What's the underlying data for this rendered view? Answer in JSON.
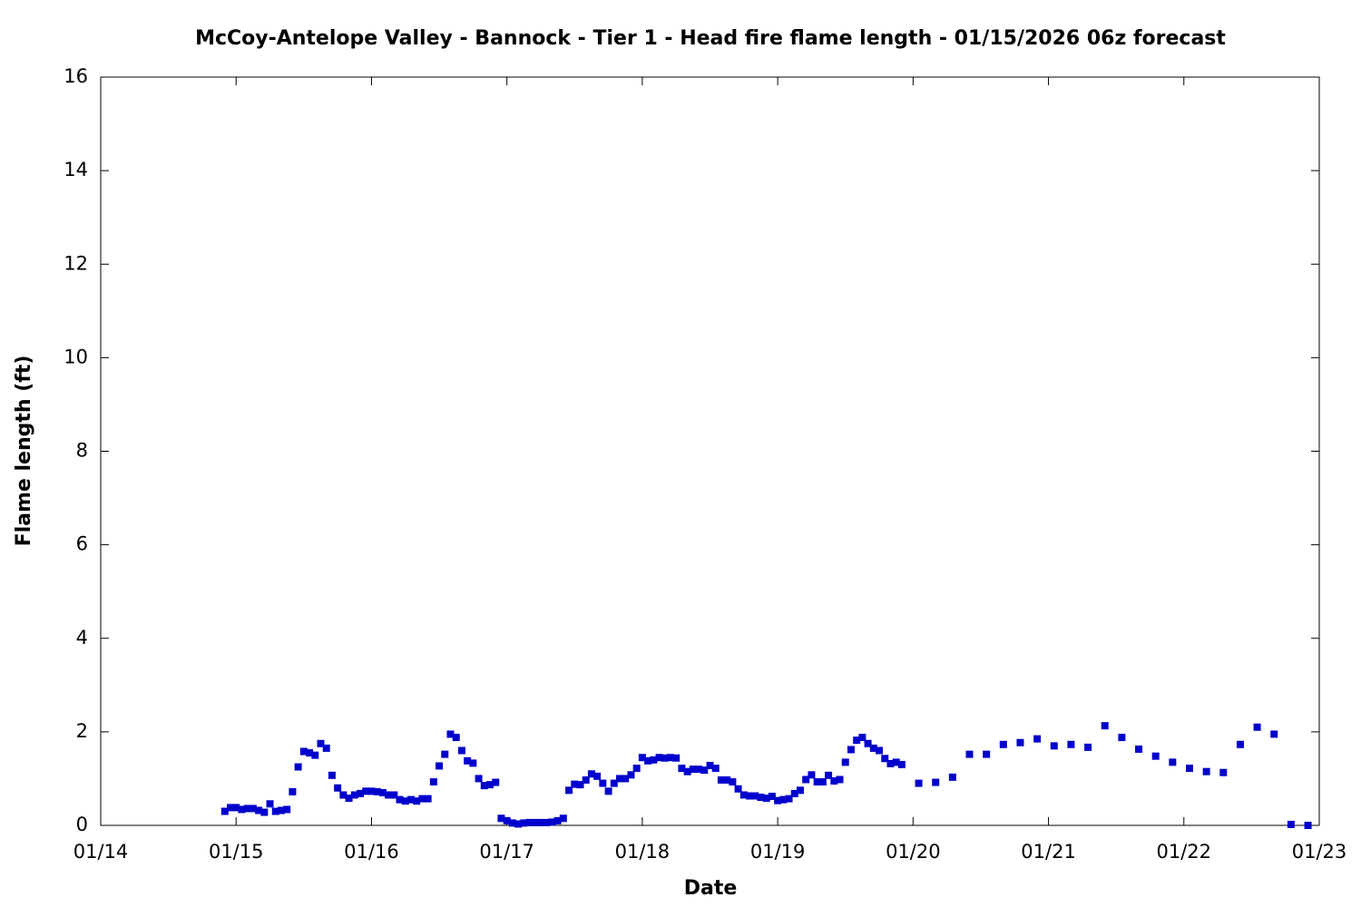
{
  "chart_data": {
    "type": "scatter",
    "title": "McCoy-Antelope Valley - Bannock - Tier 1 - Head fire flame length - 01/15/2026 06z forecast",
    "x_label": "Date",
    "y_label": "Flame length (ft)",
    "xlim": [
      0,
      216
    ],
    "xticks": [
      {
        "value": 0,
        "label": "01/14"
      },
      {
        "value": 24,
        "label": "01/15"
      },
      {
        "value": 48,
        "label": "01/16"
      },
      {
        "value": 72,
        "label": "01/17"
      },
      {
        "value": 96,
        "label": "01/18"
      },
      {
        "value": 120,
        "label": "01/19"
      },
      {
        "value": 144,
        "label": "01/20"
      },
      {
        "value": 168,
        "label": "01/21"
      },
      {
        "value": 192,
        "label": "01/22"
      },
      {
        "value": 216,
        "label": "01/23"
      }
    ],
    "ylim": [
      0,
      16
    ],
    "yticks": [
      0,
      2,
      4,
      6,
      8,
      10,
      12,
      14,
      16
    ],
    "grid": false,
    "series": [
      {
        "color": "#0000cc",
        "x": [
          22,
          23,
          24,
          25,
          26,
          27,
          28,
          29,
          30,
          31,
          32,
          33,
          34,
          35,
          36,
          37,
          38,
          39,
          40,
          41,
          42,
          43,
          44,
          45,
          46,
          47,
          48,
          49,
          50,
          51,
          52,
          53,
          54,
          55,
          56,
          57,
          58,
          59,
          60,
          61,
          62,
          63,
          64,
          65,
          66,
          67,
          68,
          69,
          70,
          71,
          72,
          73,
          74,
          75,
          76,
          77,
          78,
          79,
          80,
          81,
          82,
          83,
          84,
          85,
          86,
          87,
          88,
          89,
          90,
          91,
          92,
          93,
          94,
          95,
          96,
          97,
          98,
          99,
          100,
          101,
          102,
          103,
          104,
          105,
          106,
          107,
          108,
          109,
          110,
          111,
          112,
          113,
          114,
          115,
          116,
          117,
          118,
          119,
          120,
          121,
          122,
          123,
          124,
          125,
          126,
          127,
          128,
          129,
          130,
          131,
          132,
          133,
          134,
          135,
          136,
          137,
          138,
          139,
          140,
          141,
          142,
          145,
          148,
          151,
          154,
          157,
          160,
          163,
          166,
          169,
          172,
          175,
          178,
          181,
          184,
          187,
          190,
          193,
          196,
          199,
          202,
          205,
          208,
          211,
          214
        ],
        "values": [
          0.3,
          0.38,
          0.38,
          0.34,
          0.36,
          0.36,
          0.32,
          0.28,
          0.46,
          0.3,
          0.32,
          0.34,
          0.72,
          1.25,
          1.58,
          1.55,
          1.5,
          1.75,
          1.65,
          1.07,
          0.8,
          0.65,
          0.58,
          0.65,
          0.68,
          0.73,
          0.73,
          0.72,
          0.7,
          0.65,
          0.65,
          0.55,
          0.52,
          0.55,
          0.52,
          0.57,
          0.57,
          0.93,
          1.27,
          1.52,
          1.95,
          1.88,
          1.6,
          1.38,
          1.33,
          1.0,
          0.85,
          0.87,
          0.92,
          0.15,
          0.1,
          0.05,
          0.03,
          0.05,
          0.06,
          0.06,
          0.06,
          0.06,
          0.07,
          0.1,
          0.15,
          0.75,
          0.88,
          0.87,
          0.97,
          1.1,
          1.05,
          0.9,
          0.73,
          0.9,
          1.0,
          1.0,
          1.08,
          1.22,
          1.45,
          1.38,
          1.4,
          1.45,
          1.44,
          1.45,
          1.44,
          1.22,
          1.15,
          1.2,
          1.2,
          1.18,
          1.28,
          1.22,
          0.97,
          0.97,
          0.93,
          0.78,
          0.65,
          0.63,
          0.63,
          0.6,
          0.58,
          0.62,
          0.53,
          0.55,
          0.57,
          0.68,
          0.75,
          0.98,
          1.08,
          0.93,
          0.93,
          1.07,
          0.95,
          0.98,
          1.35,
          1.62,
          1.82,
          1.88,
          1.75,
          1.65,
          1.6,
          1.43,
          1.32,
          1.35,
          1.3,
          0.9,
          0.92,
          1.03,
          1.52,
          1.52,
          1.73,
          1.77,
          1.85,
          1.7,
          1.73,
          1.67,
          2.13,
          1.88,
          1.63,
          1.48,
          1.35,
          1.22,
          1.15,
          1.13,
          1.73,
          2.1,
          1.95,
          0.02,
          0.0
        ]
      }
    ]
  }
}
